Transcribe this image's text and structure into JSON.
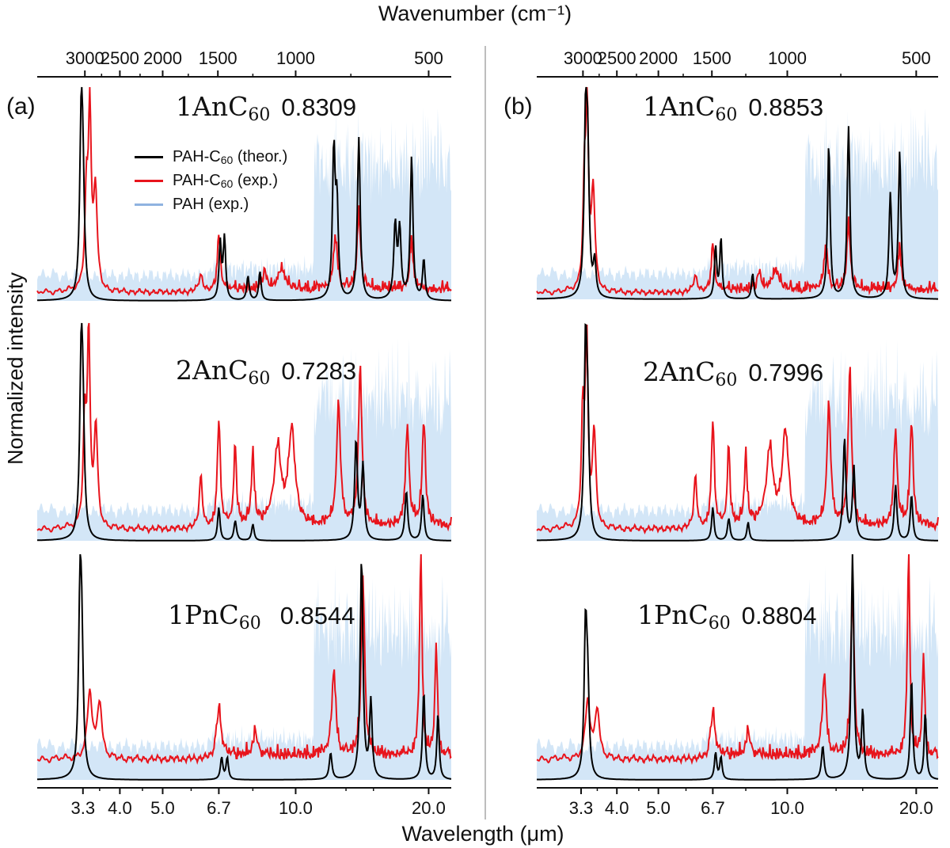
{
  "chart_data": {
    "type": "line",
    "title": "",
    "top_axis_label": "Wavenumber (cm⁻¹)",
    "xlabel": "Wavelength (μm)",
    "ylabel": "Normalized intensity",
    "x_scale": "log",
    "xlim_um": [
      2.6,
      22.5
    ],
    "bottom_ticks_um": [
      3.3,
      4.0,
      5.0,
      6.7,
      10.0,
      20.0
    ],
    "bottom_tick_labels": [
      "3.3",
      "4.0",
      "5.0",
      "6.7",
      "10.0",
      "20.0"
    ],
    "top_ticks_cm": [
      3000,
      2500,
      2000,
      1500,
      1000,
      500
    ],
    "top_tick_labels": [
      "3000",
      "2500",
      "2000",
      "1500",
      "1000",
      "500"
    ],
    "legend": [
      {
        "label": "PAH-C60 (theor.)",
        "prefix": "PAH-C",
        "sub": "60",
        "suffix": " (theor.)",
        "color": "#000000"
      },
      {
        "label": "PAH-C60 (exp.)",
        "prefix": "PAH-C",
        "sub": "60",
        "suffix": " (exp.)",
        "color": "#e8141c"
      },
      {
        "label": "PAH (exp.)",
        "prefix": "PAH (exp.)",
        "sub": "",
        "suffix": "",
        "color": "#8fb3e0"
      }
    ],
    "colors": {
      "theor": "#000000",
      "exp": "#e8141c",
      "pah": "#d3e6f7",
      "pah_line": "#8fb3e0"
    },
    "panels": [
      {
        "label": "(a)",
        "rows": [
          {
            "molecule": "1AnC",
            "subscript": "60",
            "score": "0.8309",
            "theor_peaks": [
              [
                3.27,
                1.0,
                0.03
              ],
              [
                3.3,
                0.6,
                0.03
              ],
              [
                6.75,
                0.35,
                0.05
              ],
              [
                6.9,
                0.38,
                0.05
              ],
              [
                7.8,
                0.15,
                0.06
              ],
              [
                8.3,
                0.18,
                0.06
              ],
              [
                12.2,
                0.9,
                0.1
              ],
              [
                12.4,
                0.55,
                0.1
              ],
              [
                13.9,
                1.0,
                0.12
              ],
              [
                16.8,
                0.45,
                0.15
              ],
              [
                17.2,
                0.42,
                0.15
              ],
              [
                18.3,
                0.88,
                0.15
              ],
              [
                19.5,
                0.25,
                0.15
              ]
            ],
            "exp_peaks": [
              [
                3.36,
                0.55,
                0.03
              ],
              [
                3.42,
                1.0,
                0.03
              ],
              [
                3.52,
                0.58,
                0.04
              ],
              [
                6.1,
                0.1,
                0.08
              ],
              [
                6.7,
                0.32,
                0.06
              ],
              [
                8.5,
                0.1,
                0.1
              ],
              [
                9.3,
                0.12,
                0.2
              ],
              [
                12.3,
                0.3,
                0.15
              ],
              [
                13.9,
                0.45,
                0.15
              ],
              [
                18.3,
                0.28,
                0.2
              ]
            ],
            "exp_baseline": 0.05,
            "pah_baseline": 0.12
          },
          {
            "molecule": "2AnC",
            "subscript": "60",
            "score": "0.7283",
            "theor_peaks": [
              [
                3.27,
                1.0,
                0.03
              ],
              [
                3.3,
                0.6,
                0.03
              ],
              [
                6.7,
                0.2,
                0.05
              ],
              [
                7.3,
                0.12,
                0.06
              ],
              [
                8.0,
                0.1,
                0.06
              ],
              [
                13.7,
                0.6,
                0.12
              ],
              [
                14.2,
                0.45,
                0.12
              ],
              [
                17.8,
                0.3,
                0.15
              ],
              [
                19.4,
                0.28,
                0.15
              ]
            ],
            "exp_peaks": [
              [
                3.33,
                0.55,
                0.03
              ],
              [
                3.4,
                1.0,
                0.03
              ],
              [
                3.53,
                0.52,
                0.04
              ],
              [
                6.1,
                0.28,
                0.06
              ],
              [
                6.7,
                0.56,
                0.06
              ],
              [
                7.3,
                0.42,
                0.06
              ],
              [
                8.0,
                0.38,
                0.07
              ],
              [
                9.1,
                0.4,
                0.2
              ],
              [
                9.8,
                0.5,
                0.2
              ],
              [
                12.5,
                0.65,
                0.15
              ],
              [
                14.0,
                0.85,
                0.15
              ],
              [
                17.9,
                0.52,
                0.2
              ],
              [
                19.5,
                0.55,
                0.2
              ]
            ],
            "exp_baseline": 0.06,
            "pah_baseline": 0.14
          },
          {
            "molecule": "1PnC",
            "subscript": "60",
            "score": "0.8544",
            "theor_peaks": [
              [
                3.25,
                0.75,
                0.03
              ],
              [
                3.28,
                0.5,
                0.03
              ],
              [
                6.8,
                0.1,
                0.05
              ],
              [
                7.0,
                0.1,
                0.05
              ],
              [
                12.0,
                0.12,
                0.1
              ],
              [
                14.1,
                1.0,
                0.12
              ],
              [
                14.8,
                0.35,
                0.12
              ],
              [
                19.5,
                0.4,
                0.15
              ],
              [
                21.0,
                0.3,
                0.15
              ]
            ],
            "exp_peaks": [
              [
                3.42,
                0.32,
                0.05
              ],
              [
                3.6,
                0.28,
                0.05
              ],
              [
                6.7,
                0.22,
                0.1
              ],
              [
                8.1,
                0.12,
                0.1
              ],
              [
                12.2,
                0.4,
                0.15
              ],
              [
                14.2,
                0.85,
                0.15
              ],
              [
                19.2,
                1.0,
                0.15
              ],
              [
                20.8,
                0.55,
                0.15
              ]
            ],
            "exp_baseline": 0.1,
            "pah_baseline": 0.15
          }
        ]
      },
      {
        "label": "(b)",
        "rows": [
          {
            "molecule": "1AnC",
            "subscript": "60",
            "score": "0.8853",
            "theor_peaks": [
              [
                3.38,
                0.95,
                0.03
              ],
              [
                3.42,
                0.75,
                0.03
              ],
              [
                3.55,
                0.2,
                0.03
              ],
              [
                6.8,
                0.3,
                0.05
              ],
              [
                7.0,
                0.35,
                0.05
              ],
              [
                8.3,
                0.15,
                0.06
              ],
              [
                12.5,
                0.9,
                0.1
              ],
              [
                13.9,
                1.0,
                0.12
              ],
              [
                17.4,
                0.6,
                0.15
              ],
              [
                18.3,
                0.85,
                0.15
              ]
            ],
            "exp_peaks": [
              [
                3.36,
                0.6,
                0.03
              ],
              [
                3.41,
                1.0,
                0.03
              ],
              [
                3.52,
                0.6,
                0.04
              ],
              [
                6.1,
                0.1,
                0.08
              ],
              [
                6.7,
                0.28,
                0.06
              ],
              [
                8.6,
                0.1,
                0.1
              ],
              [
                9.4,
                0.12,
                0.2
              ],
              [
                12.3,
                0.25,
                0.15
              ],
              [
                13.9,
                0.4,
                0.15
              ],
              [
                18.3,
                0.25,
                0.2
              ]
            ],
            "exp_baseline": 0.04,
            "pah_baseline": 0.12
          },
          {
            "molecule": "2AnC",
            "subscript": "60",
            "score": "0.7996",
            "theor_peaks": [
              [
                3.38,
                1.0,
                0.03
              ],
              [
                3.42,
                0.55,
                0.03
              ],
              [
                6.7,
                0.18,
                0.05
              ],
              [
                7.3,
                0.12,
                0.06
              ],
              [
                8.1,
                0.1,
                0.06
              ],
              [
                13.6,
                0.55,
                0.12
              ],
              [
                14.3,
                0.4,
                0.12
              ],
              [
                17.9,
                0.3,
                0.15
              ],
              [
                19.5,
                0.25,
                0.15
              ]
            ],
            "exp_peaks": [
              [
                3.33,
                0.6,
                0.03
              ],
              [
                3.4,
                1.0,
                0.03
              ],
              [
                3.54,
                0.5,
                0.04
              ],
              [
                6.1,
                0.28,
                0.06
              ],
              [
                6.7,
                0.56,
                0.06
              ],
              [
                7.3,
                0.42,
                0.06
              ],
              [
                8.0,
                0.38,
                0.07
              ],
              [
                9.1,
                0.4,
                0.2
              ],
              [
                9.9,
                0.5,
                0.2
              ],
              [
                12.5,
                0.65,
                0.15
              ],
              [
                14.0,
                0.85,
                0.15
              ],
              [
                17.9,
                0.5,
                0.2
              ],
              [
                19.5,
                0.55,
                0.2
              ]
            ],
            "exp_baseline": 0.06,
            "pah_baseline": 0.14
          },
          {
            "molecule": "1PnC",
            "subscript": "60",
            "score": "0.8804",
            "theor_peaks": [
              [
                3.38,
                0.65,
                0.03
              ],
              [
                3.42,
                0.35,
                0.03
              ],
              [
                6.8,
                0.12,
                0.05
              ],
              [
                7.0,
                0.1,
                0.05
              ],
              [
                12.1,
                0.15,
                0.1
              ],
              [
                14.2,
                1.0,
                0.12
              ],
              [
                15.0,
                0.3,
                0.12
              ],
              [
                19.5,
                0.45,
                0.15
              ],
              [
                21.0,
                0.3,
                0.15
              ]
            ],
            "exp_peaks": [
              [
                3.42,
                0.28,
                0.05
              ],
              [
                3.6,
                0.25,
                0.05
              ],
              [
                6.7,
                0.2,
                0.1
              ],
              [
                8.1,
                0.12,
                0.1
              ],
              [
                12.2,
                0.38,
                0.15
              ],
              [
                14.2,
                0.8,
                0.15
              ],
              [
                19.2,
                1.0,
                0.15
              ],
              [
                20.8,
                0.5,
                0.15
              ]
            ],
            "exp_baseline": 0.1,
            "pah_baseline": 0.15
          }
        ]
      }
    ]
  }
}
